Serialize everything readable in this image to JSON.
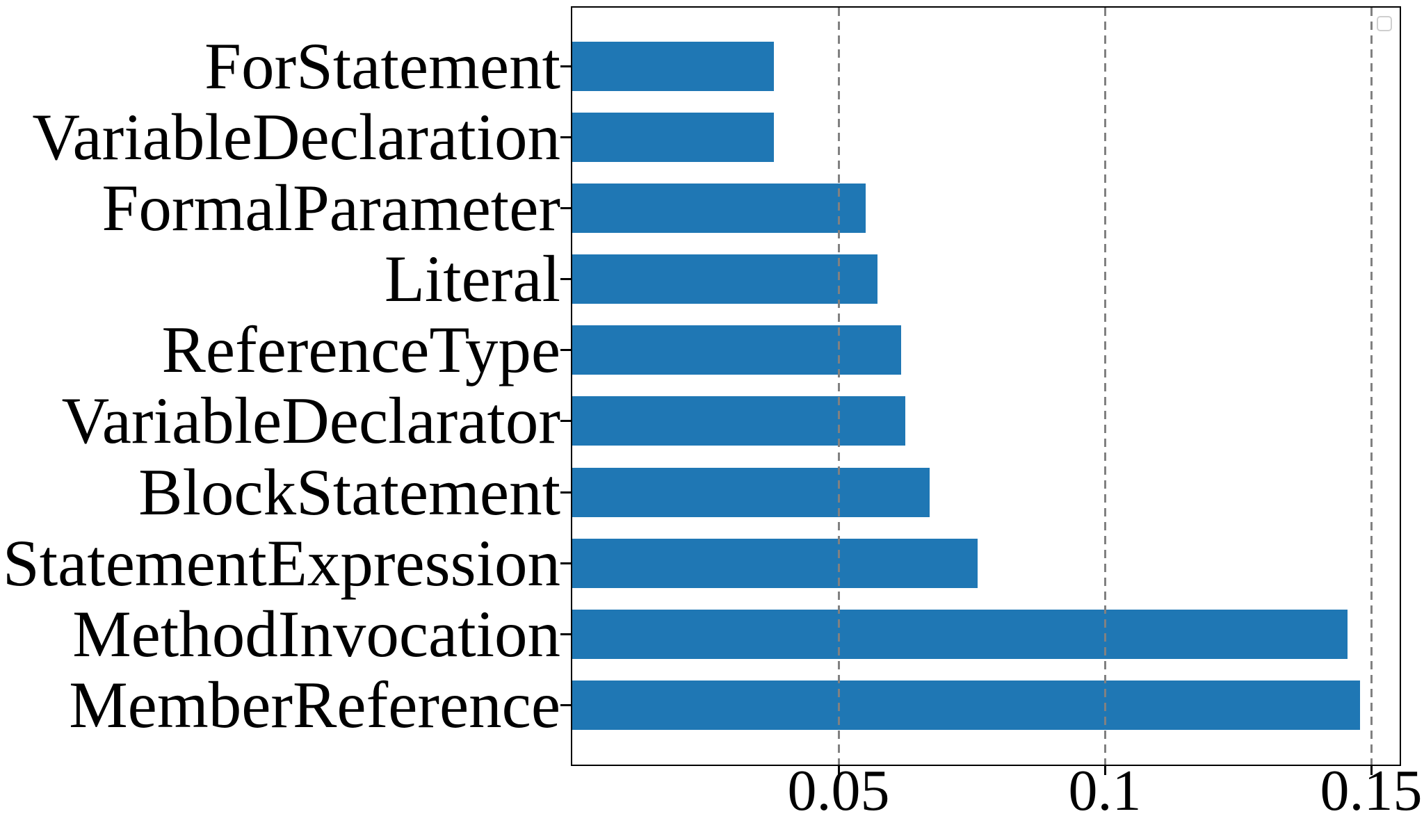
{
  "figure": {
    "background": "#ffffff",
    "bar_color": "#1f77b4",
    "grid_color": "#818181",
    "axis_color": "#000000",
    "text_color": "#000000"
  },
  "chart_data": {
    "type": "bar",
    "orientation": "horizontal",
    "title": "",
    "xlabel": "",
    "ylabel": "",
    "categories_top_to_bottom": [
      "ForStatement",
      "VariableDeclaration",
      "FormalParameter",
      "Literal",
      "ReferenceType",
      "VariableDeclarator",
      "BlockStatement",
      "StatementExpression",
      "MethodInvocation",
      "MemberReference"
    ],
    "values": [
      0.0379,
      0.0379,
      0.0551,
      0.0573,
      0.0617,
      0.0625,
      0.0671,
      0.0761,
      0.1455,
      0.1479
    ],
    "xticks": [
      0.05,
      0.1,
      0.15
    ],
    "xtick_labels": [
      "0.05",
      "0.1",
      "0.15"
    ],
    "xlim": [
      0,
      0.1553
    ],
    "grid": "vertical-dashed",
    "grid_on": true,
    "legend": {
      "visible": true,
      "entries": [],
      "position": "upper-right"
    }
  }
}
